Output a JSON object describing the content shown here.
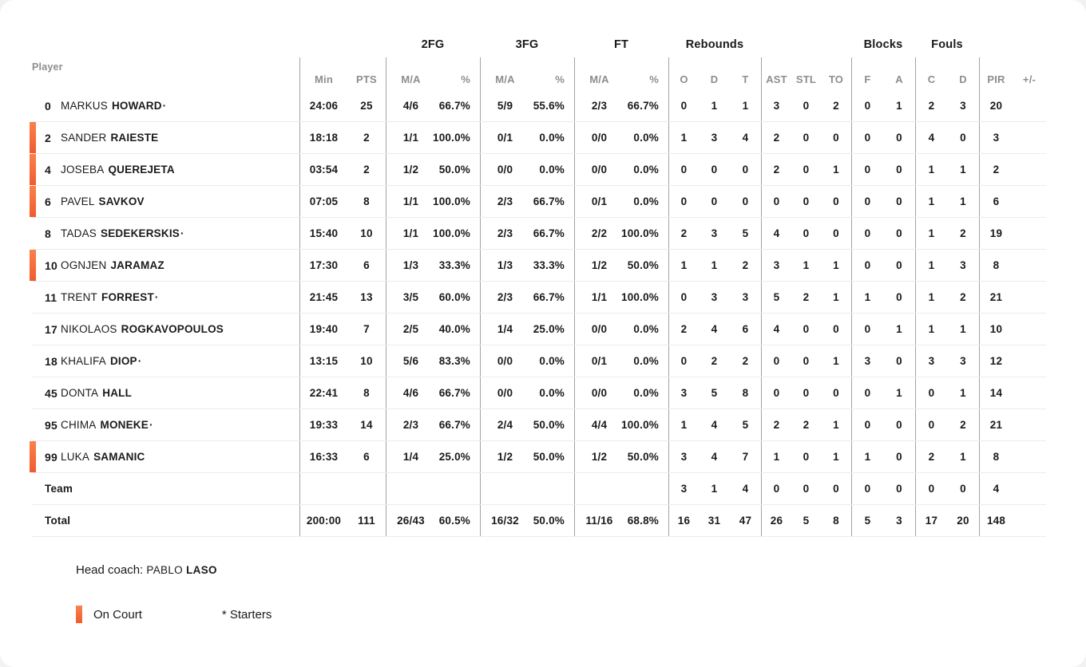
{
  "colors": {
    "accent_top": "#f9824e",
    "accent_bottom": "#f15b2e",
    "header_gray": "#8d8d8d",
    "vline_gray": "#a3a3a3",
    "hline_gray": "#ececec"
  },
  "table": {
    "starter_dot": "·",
    "header": {
      "player_label": "Player",
      "groups": [
        "2FG",
        "3FG",
        "FT",
        "Rebounds",
        "Blocks",
        "Fouls"
      ],
      "min_label": "Min",
      "pts_label": "PTS",
      "ma_label": "M/A",
      "pct_label": "%",
      "col_o": "O",
      "col_d": "D",
      "col_t": "T",
      "col_ast": "AST",
      "col_stl": "STL",
      "col_to": "TO",
      "col_f": "F",
      "col_a": "A",
      "col_c": "C",
      "col_pir": "PIR",
      "col_pm": "+/-"
    },
    "rows": [
      {
        "num": "0",
        "first": "MARKUS",
        "last": "HOWARD",
        "starter": true,
        "oncourt": false,
        "min": "24:06",
        "pts": "25",
        "fg2_ma": "4/6",
        "fg2_pct": "66.7%",
        "fg3_ma": "5/9",
        "fg3_pct": "55.6%",
        "ft_ma": "2/3",
        "ft_pct": "66.7%",
        "reb_o": "0",
        "reb_d": "1",
        "reb_t": "1",
        "ast": "3",
        "stl": "0",
        "to": "2",
        "blk_f": "0",
        "blk_a": "1",
        "foul_c": "2",
        "foul_d": "3",
        "pir": "20",
        "pm": ""
      },
      {
        "num": "2",
        "first": "SANDER",
        "last": "RAIESTE",
        "starter": false,
        "oncourt": true,
        "min": "18:18",
        "pts": "2",
        "fg2_ma": "1/1",
        "fg2_pct": "100.0%",
        "fg3_ma": "0/1",
        "fg3_pct": "0.0%",
        "ft_ma": "0/0",
        "ft_pct": "0.0%",
        "reb_o": "1",
        "reb_d": "3",
        "reb_t": "4",
        "ast": "2",
        "stl": "0",
        "to": "0",
        "blk_f": "0",
        "blk_a": "0",
        "foul_c": "4",
        "foul_d": "0",
        "pir": "3",
        "pm": ""
      },
      {
        "num": "4",
        "first": "JOSEBA",
        "last": "QUEREJETA",
        "starter": false,
        "oncourt": true,
        "min": "03:54",
        "pts": "2",
        "fg2_ma": "1/2",
        "fg2_pct": "50.0%",
        "fg3_ma": "0/0",
        "fg3_pct": "0.0%",
        "ft_ma": "0/0",
        "ft_pct": "0.0%",
        "reb_o": "0",
        "reb_d": "0",
        "reb_t": "0",
        "ast": "2",
        "stl": "0",
        "to": "1",
        "blk_f": "0",
        "blk_a": "0",
        "foul_c": "1",
        "foul_d": "1",
        "pir": "2",
        "pm": ""
      },
      {
        "num": "6",
        "first": "PAVEL",
        "last": "SAVKOV",
        "starter": false,
        "oncourt": true,
        "min": "07:05",
        "pts": "8",
        "fg2_ma": "1/1",
        "fg2_pct": "100.0%",
        "fg3_ma": "2/3",
        "fg3_pct": "66.7%",
        "ft_ma": "0/1",
        "ft_pct": "0.0%",
        "reb_o": "0",
        "reb_d": "0",
        "reb_t": "0",
        "ast": "0",
        "stl": "0",
        "to": "0",
        "blk_f": "0",
        "blk_a": "0",
        "foul_c": "1",
        "foul_d": "1",
        "pir": "6",
        "pm": ""
      },
      {
        "num": "8",
        "first": "TADAS",
        "last": "SEDEKERSKIS",
        "starter": true,
        "oncourt": false,
        "min": "15:40",
        "pts": "10",
        "fg2_ma": "1/1",
        "fg2_pct": "100.0%",
        "fg3_ma": "2/3",
        "fg3_pct": "66.7%",
        "ft_ma": "2/2",
        "ft_pct": "100.0%",
        "reb_o": "2",
        "reb_d": "3",
        "reb_t": "5",
        "ast": "4",
        "stl": "0",
        "to": "0",
        "blk_f": "0",
        "blk_a": "0",
        "foul_c": "1",
        "foul_d": "2",
        "pir": "19",
        "pm": ""
      },
      {
        "num": "10",
        "first": "OGNJEN",
        "last": "JARAMAZ",
        "starter": false,
        "oncourt": true,
        "min": "17:30",
        "pts": "6",
        "fg2_ma": "1/3",
        "fg2_pct": "33.3%",
        "fg3_ma": "1/3",
        "fg3_pct": "33.3%",
        "ft_ma": "1/2",
        "ft_pct": "50.0%",
        "reb_o": "1",
        "reb_d": "1",
        "reb_t": "2",
        "ast": "3",
        "stl": "1",
        "to": "1",
        "blk_f": "0",
        "blk_a": "0",
        "foul_c": "1",
        "foul_d": "3",
        "pir": "8",
        "pm": ""
      },
      {
        "num": "11",
        "first": "TRENT",
        "last": "FORREST",
        "starter": true,
        "oncourt": false,
        "min": "21:45",
        "pts": "13",
        "fg2_ma": "3/5",
        "fg2_pct": "60.0%",
        "fg3_ma": "2/3",
        "fg3_pct": "66.7%",
        "ft_ma": "1/1",
        "ft_pct": "100.0%",
        "reb_o": "0",
        "reb_d": "3",
        "reb_t": "3",
        "ast": "5",
        "stl": "2",
        "to": "1",
        "blk_f": "1",
        "blk_a": "0",
        "foul_c": "1",
        "foul_d": "2",
        "pir": "21",
        "pm": ""
      },
      {
        "num": "17",
        "first": "NIKOLAOS",
        "last": "ROGKAVOPOULOS",
        "starter": false,
        "oncourt": false,
        "min": "19:40",
        "pts": "7",
        "fg2_ma": "2/5",
        "fg2_pct": "40.0%",
        "fg3_ma": "1/4",
        "fg3_pct": "25.0%",
        "ft_ma": "0/0",
        "ft_pct": "0.0%",
        "reb_o": "2",
        "reb_d": "4",
        "reb_t": "6",
        "ast": "4",
        "stl": "0",
        "to": "0",
        "blk_f": "0",
        "blk_a": "1",
        "foul_c": "1",
        "foul_d": "1",
        "pir": "10",
        "pm": ""
      },
      {
        "num": "18",
        "first": "KHALIFA",
        "last": "DIOP",
        "starter": true,
        "oncourt": false,
        "min": "13:15",
        "pts": "10",
        "fg2_ma": "5/6",
        "fg2_pct": "83.3%",
        "fg3_ma": "0/0",
        "fg3_pct": "0.0%",
        "ft_ma": "0/1",
        "ft_pct": "0.0%",
        "reb_o": "0",
        "reb_d": "2",
        "reb_t": "2",
        "ast": "0",
        "stl": "0",
        "to": "1",
        "blk_f": "3",
        "blk_a": "0",
        "foul_c": "3",
        "foul_d": "3",
        "pir": "12",
        "pm": ""
      },
      {
        "num": "45",
        "first": "DONTA",
        "last": "HALL",
        "starter": false,
        "oncourt": false,
        "min": "22:41",
        "pts": "8",
        "fg2_ma": "4/6",
        "fg2_pct": "66.7%",
        "fg3_ma": "0/0",
        "fg3_pct": "0.0%",
        "ft_ma": "0/0",
        "ft_pct": "0.0%",
        "reb_o": "3",
        "reb_d": "5",
        "reb_t": "8",
        "ast": "0",
        "stl": "0",
        "to": "0",
        "blk_f": "0",
        "blk_a": "1",
        "foul_c": "0",
        "foul_d": "1",
        "pir": "14",
        "pm": ""
      },
      {
        "num": "95",
        "first": "CHIMA",
        "last": "MONEKE",
        "starter": true,
        "oncourt": false,
        "min": "19:33",
        "pts": "14",
        "fg2_ma": "2/3",
        "fg2_pct": "66.7%",
        "fg3_ma": "2/4",
        "fg3_pct": "50.0%",
        "ft_ma": "4/4",
        "ft_pct": "100.0%",
        "reb_o": "1",
        "reb_d": "4",
        "reb_t": "5",
        "ast": "2",
        "stl": "2",
        "to": "1",
        "blk_f": "0",
        "blk_a": "0",
        "foul_c": "0",
        "foul_d": "2",
        "pir": "21",
        "pm": ""
      },
      {
        "num": "99",
        "first": "LUKA",
        "last": "SAMANIC",
        "starter": false,
        "oncourt": true,
        "min": "16:33",
        "pts": "6",
        "fg2_ma": "1/4",
        "fg2_pct": "25.0%",
        "fg3_ma": "1/2",
        "fg3_pct": "50.0%",
        "ft_ma": "1/2",
        "ft_pct": "50.0%",
        "reb_o": "3",
        "reb_d": "4",
        "reb_t": "7",
        "ast": "1",
        "stl": "0",
        "to": "1",
        "blk_f": "1",
        "blk_a": "0",
        "foul_c": "2",
        "foul_d": "1",
        "pir": "8",
        "pm": ""
      },
      {
        "label": "Team",
        "starter": false,
        "oncourt": false,
        "min": "",
        "pts": "",
        "fg2_ma": "",
        "fg2_pct": "",
        "fg3_ma": "",
        "fg3_pct": "",
        "ft_ma": "",
        "ft_pct": "",
        "reb_o": "3",
        "reb_d": "1",
        "reb_t": "4",
        "ast": "0",
        "stl": "0",
        "to": "0",
        "blk_f": "0",
        "blk_a": "0",
        "foul_c": "0",
        "foul_d": "0",
        "pir": "4",
        "pm": ""
      },
      {
        "label": "Total",
        "starter": false,
        "oncourt": false,
        "min": "200:00",
        "pts": "111",
        "fg2_ma": "26/43",
        "fg2_pct": "60.5%",
        "fg3_ma": "16/32",
        "fg3_pct": "50.0%",
        "ft_ma": "11/16",
        "ft_pct": "68.8%",
        "reb_o": "16",
        "reb_d": "31",
        "reb_t": "47",
        "ast": "26",
        "stl": "5",
        "to": "8",
        "blk_f": "5",
        "blk_a": "3",
        "foul_c": "17",
        "foul_d": "20",
        "pir": "148",
        "pm": ""
      }
    ]
  },
  "footer": {
    "coach_prefix": "Head coach:",
    "coach_first": "PABLO",
    "coach_last": "LASO"
  },
  "legend": {
    "oncourt_label": "On Court",
    "starters_label": "* Starters"
  }
}
